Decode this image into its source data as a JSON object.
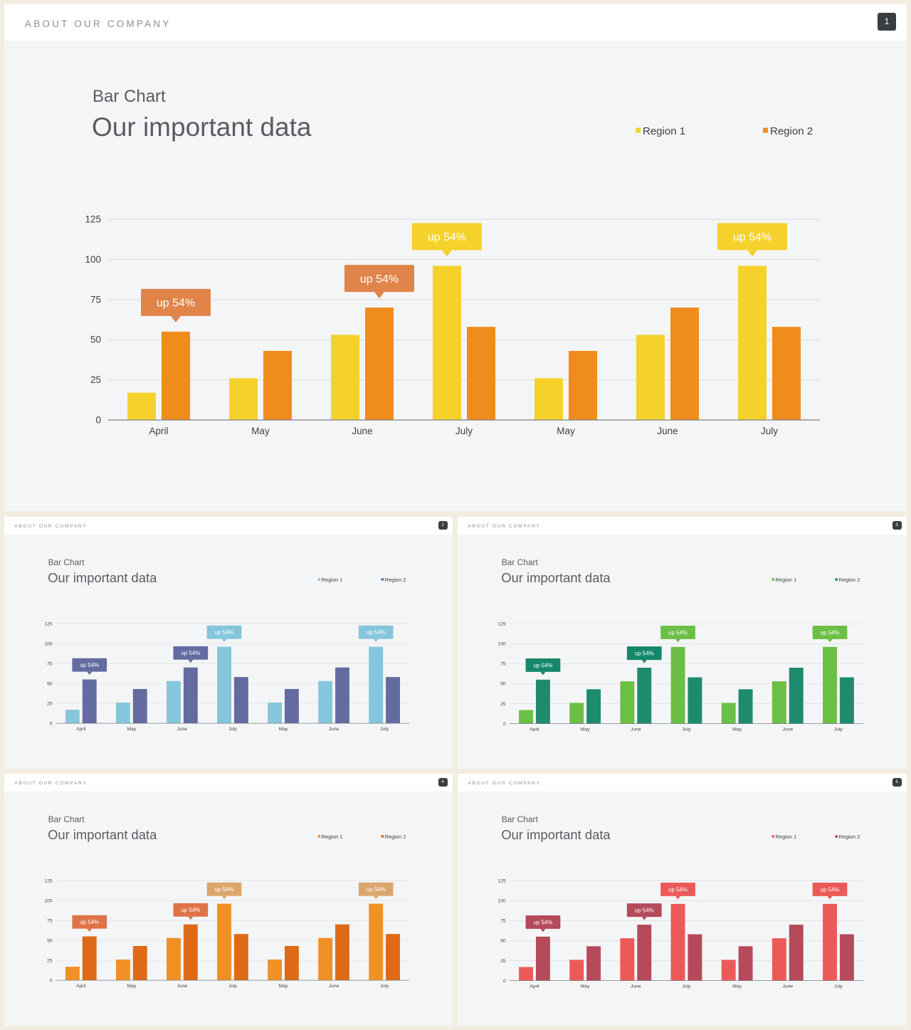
{
  "slides": [
    {
      "header": "ABOUT OUR COMPANY",
      "page_number": "1",
      "subtitle": "Bar Chart",
      "title": "Our important data",
      "colors": {
        "series1": "#f5d22b",
        "series2": "#f08c1c",
        "callout1": "#f5d22b",
        "callout2": "#e0844a",
        "callout_text": "#ffffff"
      }
    },
    {
      "header": "ABOUT OUR COMPANY",
      "page_number": "2",
      "subtitle": "Bar Chart",
      "title": "Our important data",
      "colors": {
        "series1": "#86c6dc",
        "series2": "#636ba0",
        "callout1": "#86c6dc",
        "callout2": "#636ba0",
        "callout_text": "#ffffff"
      }
    },
    {
      "header": "ABOUT OUR COMPANY",
      "page_number": "3",
      "subtitle": "Bar Chart",
      "title": "Our important data",
      "colors": {
        "series1": "#6cbf45",
        "series2": "#1e8a6e",
        "callout1": "#6cbf45",
        "callout2": "#15876a",
        "callout_text": "#ffffff"
      }
    },
    {
      "header": "ABOUT OUR COMPANY",
      "page_number": "4",
      "subtitle": "Bar Chart",
      "title": "Our important data",
      "colors": {
        "series1": "#f19024",
        "series2": "#de6a17",
        "callout1": "#dba66c",
        "callout2": "#de7348",
        "callout_text": "#ffffff"
      }
    },
    {
      "header": "ABOUT OUR COMPANY",
      "page_number": "5",
      "subtitle": "Bar Chart",
      "title": "Our important data",
      "colors": {
        "series1": "#ec5a58",
        "series2": "#b54a5a",
        "callout1": "#ec5a58",
        "callout2": "#b54a5a",
        "callout_text": "#ffffff"
      }
    }
  ],
  "chart_data": [
    {
      "type": "bar",
      "categories": [
        "April",
        "May",
        "June",
        "July",
        "May",
        "June",
        "July"
      ],
      "series": [
        {
          "name": "Region 1",
          "values": [
            17,
            26,
            53,
            96,
            26,
            53,
            96
          ]
        },
        {
          "name": "Region 2",
          "values": [
            55,
            43,
            70,
            58,
            43,
            70,
            58
          ]
        }
      ],
      "ylim": [
        0,
        125
      ],
      "yticks": [
        0,
        25,
        50,
        75,
        100,
        125
      ],
      "grid": true,
      "legend": "top-right",
      "annotations": [
        {
          "text": "up 54%",
          "category_index": 0,
          "series": 2
        },
        {
          "text": "up 54%",
          "category_index": 2,
          "series": 2
        },
        {
          "text": "up 54%",
          "category_index": 3,
          "series": 1
        },
        {
          "text": "up 54%",
          "category_index": 6,
          "series": 1
        }
      ]
    },
    {
      "type": "bar",
      "categories": [
        "April",
        "May",
        "June",
        "July",
        "May",
        "June",
        "July"
      ],
      "series": [
        {
          "name": "Region 1",
          "values": [
            17,
            26,
            53,
            96,
            26,
            53,
            96
          ]
        },
        {
          "name": "Region 2",
          "values": [
            55,
            43,
            70,
            58,
            43,
            70,
            58
          ]
        }
      ],
      "ylim": [
        0,
        125
      ],
      "yticks": [
        0,
        25,
        50,
        75,
        100,
        125
      ],
      "grid": true,
      "legend": "top-right",
      "annotations": [
        {
          "text": "up 54%",
          "category_index": 0,
          "series": 2
        },
        {
          "text": "up 54%",
          "category_index": 2,
          "series": 2
        },
        {
          "text": "up 54%",
          "category_index": 3,
          "series": 1
        },
        {
          "text": "up 54%",
          "category_index": 6,
          "series": 1
        }
      ]
    },
    {
      "type": "bar",
      "categories": [
        "April",
        "May",
        "June",
        "July",
        "May",
        "June",
        "July"
      ],
      "series": [
        {
          "name": "Region 1",
          "values": [
            17,
            26,
            53,
            96,
            26,
            53,
            96
          ]
        },
        {
          "name": "Region 2",
          "values": [
            55,
            43,
            70,
            58,
            43,
            70,
            58
          ]
        }
      ],
      "ylim": [
        0,
        125
      ],
      "yticks": [
        0,
        25,
        50,
        75,
        100,
        125
      ],
      "grid": true,
      "legend": "top-right",
      "annotations": [
        {
          "text": "up 54%",
          "category_index": 0,
          "series": 2
        },
        {
          "text": "up 54%",
          "category_index": 2,
          "series": 2
        },
        {
          "text": "up 54%",
          "category_index": 3,
          "series": 1
        },
        {
          "text": "up 54%",
          "category_index": 6,
          "series": 1
        }
      ]
    },
    {
      "type": "bar",
      "categories": [
        "April",
        "May",
        "June",
        "July",
        "May",
        "June",
        "July"
      ],
      "series": [
        {
          "name": "Region 1",
          "values": [
            17,
            26,
            53,
            96,
            26,
            53,
            96
          ]
        },
        {
          "name": "Region 2",
          "values": [
            55,
            43,
            70,
            58,
            43,
            70,
            58
          ]
        }
      ],
      "ylim": [
        0,
        125
      ],
      "yticks": [
        0,
        25,
        50,
        75,
        100,
        125
      ],
      "grid": true,
      "legend": "top-right",
      "annotations": [
        {
          "text": "up 54%",
          "category_index": 0,
          "series": 2
        },
        {
          "text": "up 54%",
          "category_index": 2,
          "series": 2
        },
        {
          "text": "up 54%",
          "category_index": 3,
          "series": 1
        },
        {
          "text": "up 54%",
          "category_index": 6,
          "series": 1
        }
      ]
    },
    {
      "type": "bar",
      "categories": [
        "April",
        "May",
        "June",
        "July",
        "May",
        "June",
        "July"
      ],
      "series": [
        {
          "name": "Region 1",
          "values": [
            17,
            26,
            53,
            96,
            26,
            53,
            96
          ]
        },
        {
          "name": "Region 2",
          "values": [
            55,
            43,
            70,
            58,
            43,
            70,
            58
          ]
        }
      ],
      "ylim": [
        0,
        125
      ],
      "yticks": [
        0,
        25,
        50,
        75,
        100,
        125
      ],
      "grid": true,
      "legend": "top-right",
      "annotations": [
        {
          "text": "up 54%",
          "category_index": 0,
          "series": 2
        },
        {
          "text": "up 54%",
          "category_index": 2,
          "series": 2
        },
        {
          "text": "up 54%",
          "category_index": 3,
          "series": 1
        },
        {
          "text": "up 54%",
          "category_index": 6,
          "series": 1
        }
      ]
    }
  ]
}
